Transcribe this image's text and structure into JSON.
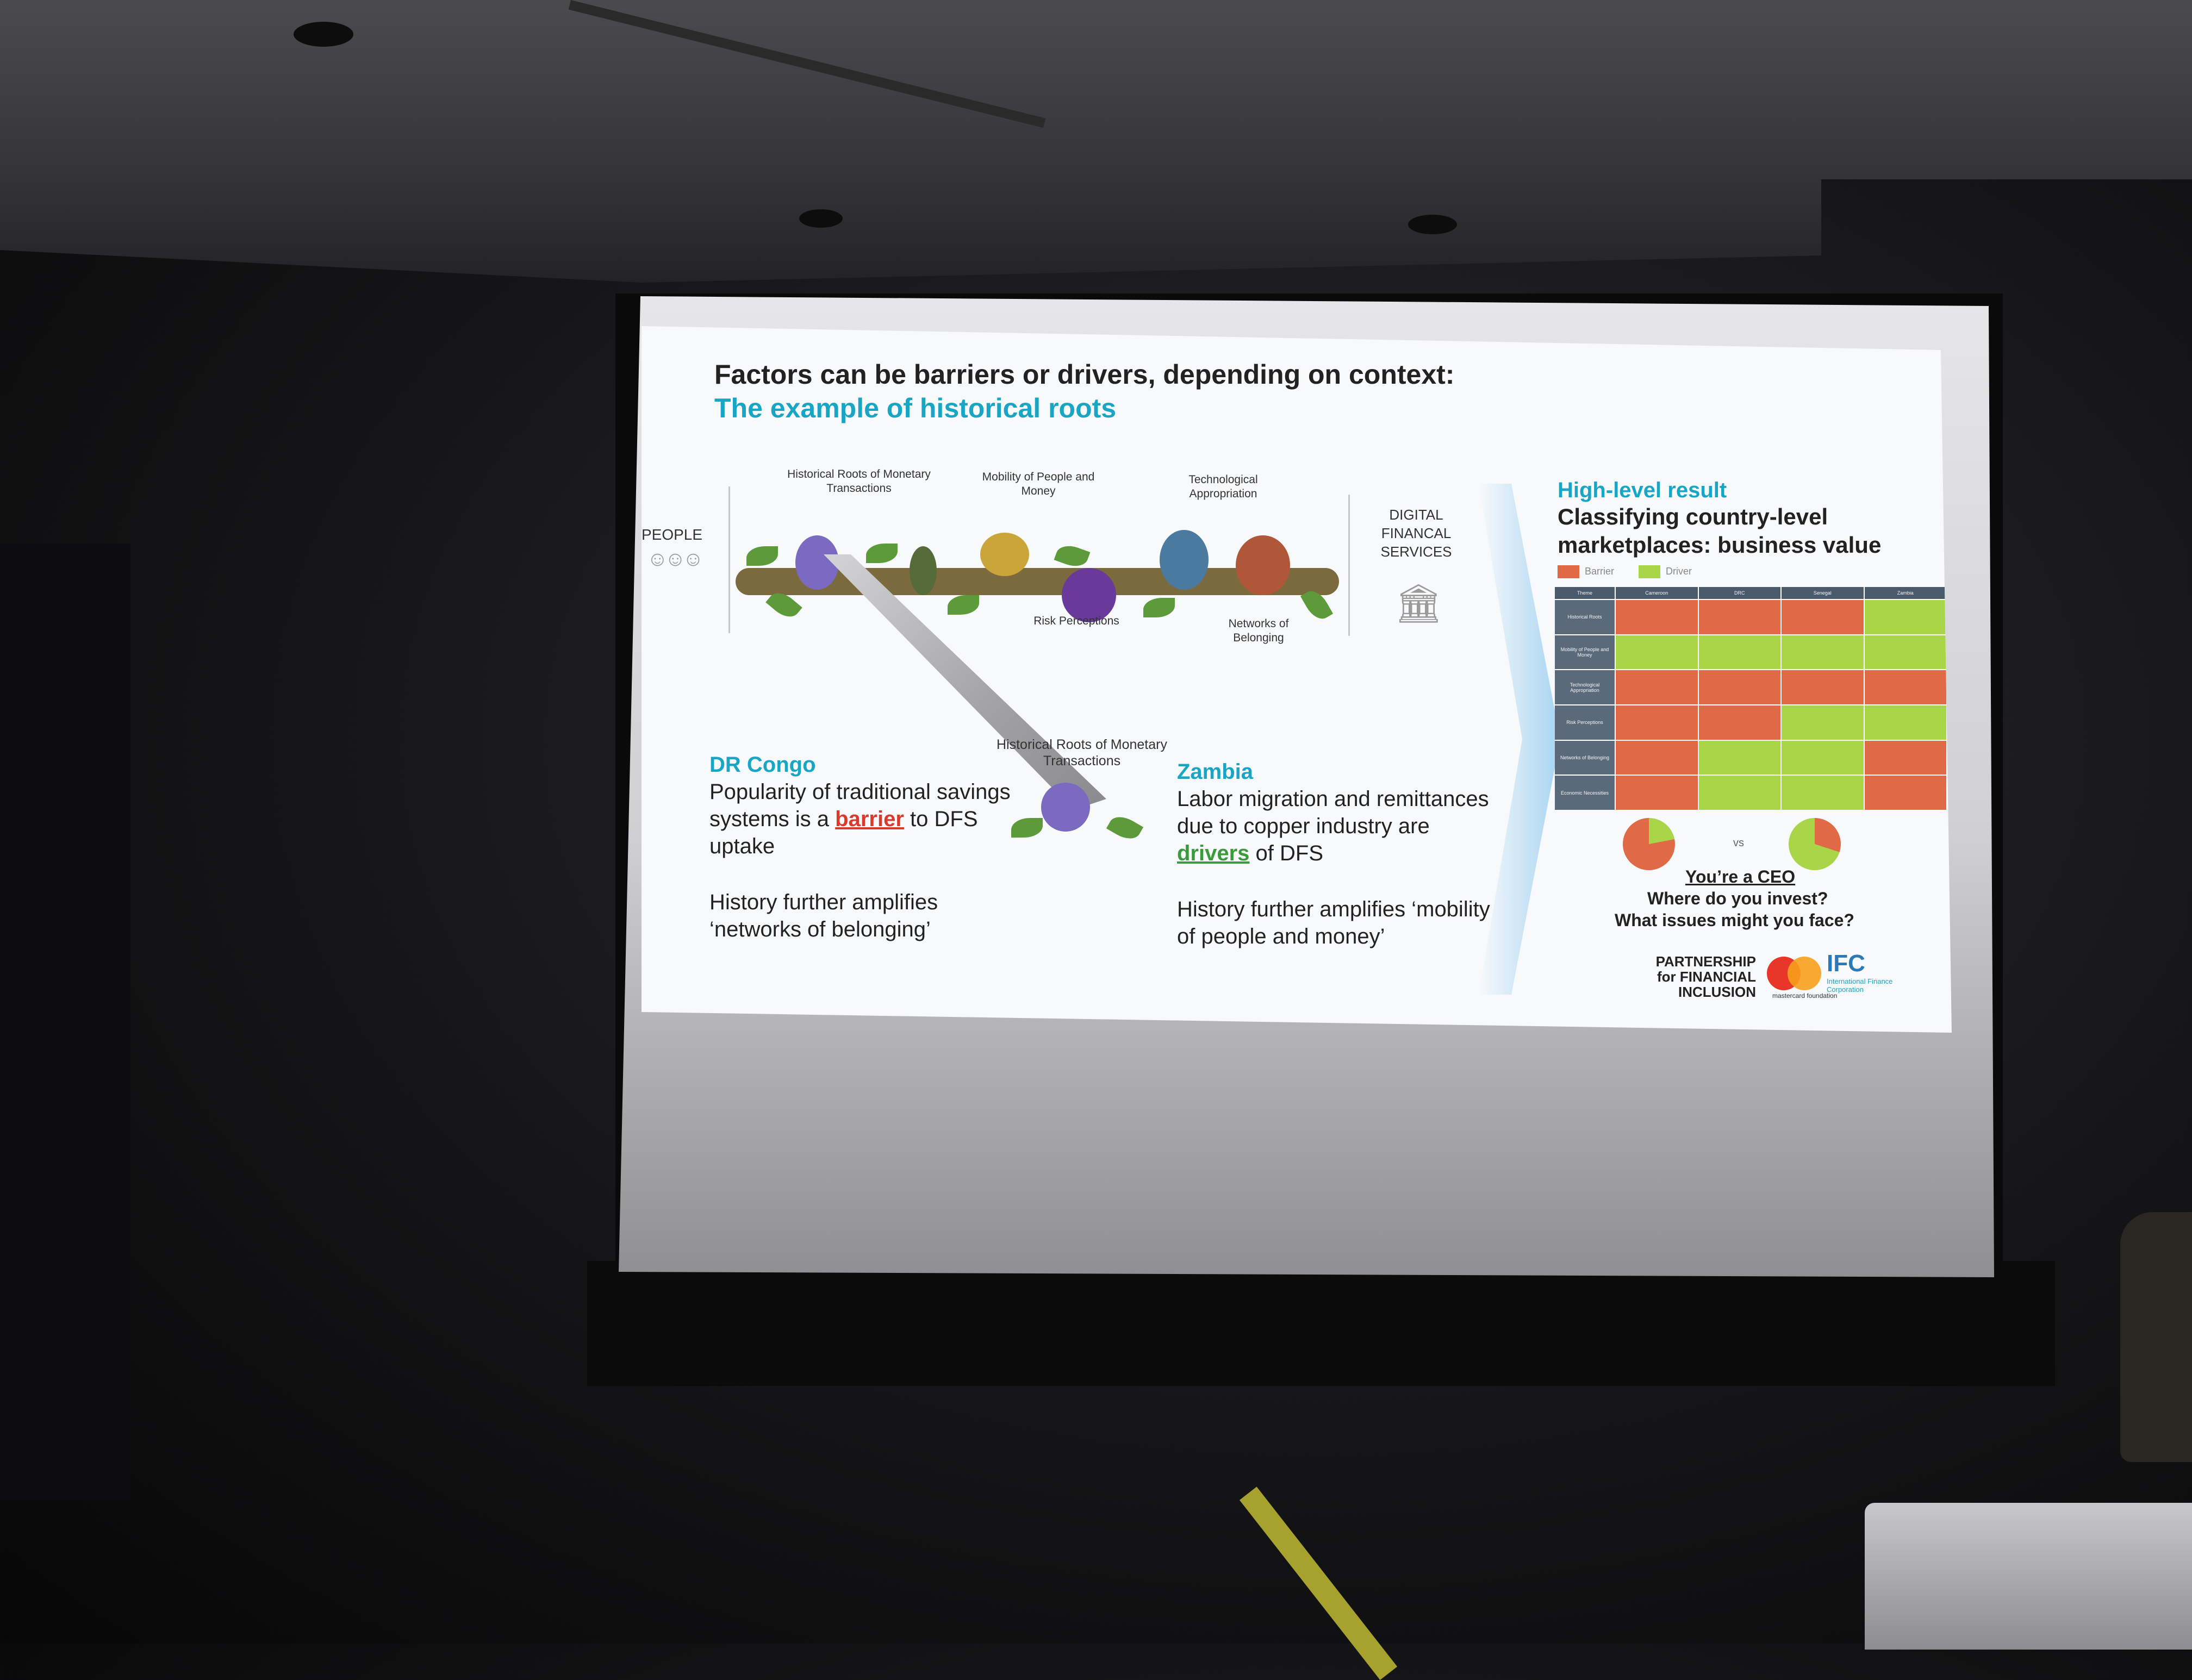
{
  "slide": {
    "title": "Factors can be barriers or drivers, depending on context:",
    "subtitle": "The example of historical roots",
    "tree": {
      "people_label": "PEOPLE",
      "factors": [
        {
          "label": "Historical Roots of Monetary Transactions"
        },
        {
          "label": "Mobility of People and Money"
        },
        {
          "label": "Technological Appropriation"
        },
        {
          "label": "Risk Perceptions"
        },
        {
          "label": "Networks of Belonging"
        }
      ],
      "dfs_label": "DIGITAL FINANCAL SERVICES",
      "zoom_label": "Historical Roots of Monetary Transactions"
    },
    "case_left": {
      "country": "DR Congo",
      "text_before": "Popularity of traditional savings systems is a",
      "highlight": "barrier",
      "text_after": "to DFS uptake",
      "note": "History further amplifies ‘networks of belonging’"
    },
    "case_right": {
      "country": "Zambia",
      "text_before": "Labor migration and remittances due to copper industry are",
      "highlight": "drivers",
      "text_after": "of DFS",
      "note": "History further amplifies ‘mobility of people and money’"
    },
    "result": {
      "title": "High-level result",
      "subtitle": "Classifying country-level marketplaces: business value",
      "legend": [
        {
          "label": "Barrier",
          "color": "#e06a46"
        },
        {
          "label": "Driver",
          "color": "#a9d548"
        }
      ],
      "grid_columns": [
        "Theme",
        "Cameroon",
        "DRC",
        "Senegal",
        "Zambia"
      ],
      "grid_rows": [
        {
          "theme": "Historical Roots",
          "cells": [
            "r",
            "r",
            "r",
            "g"
          ]
        },
        {
          "theme": "Mobility of People and Money",
          "cells": [
            "g",
            "g",
            "g",
            "g"
          ]
        },
        {
          "theme": "Technological Appropriation",
          "cells": [
            "r",
            "r",
            "r",
            "r"
          ]
        },
        {
          "theme": "Risk Perceptions",
          "cells": [
            "r",
            "r",
            "g",
            "g"
          ]
        },
        {
          "theme": "Networks of Belonging",
          "cells": [
            "r",
            "g",
            "g",
            "r"
          ]
        },
        {
          "theme": "Economic Necessities",
          "cells": [
            "r",
            "g",
            "g",
            "r"
          ]
        }
      ],
      "vs_label": "vs",
      "ceo_line": "You’re a CEO",
      "question1": "Where do you invest?",
      "question2": "What issues might you face?"
    },
    "logos": {
      "pfi": "PARTNERSHIP for FINANCIAL INCLUSION",
      "mastercard_caption": "mastercard foundation",
      "ifc": "IFC",
      "ifc_sub": "International Finance Corporation"
    }
  },
  "colors": {
    "accent": "#19a5c4",
    "barrier": "#e06a46",
    "driver": "#a9d548"
  }
}
